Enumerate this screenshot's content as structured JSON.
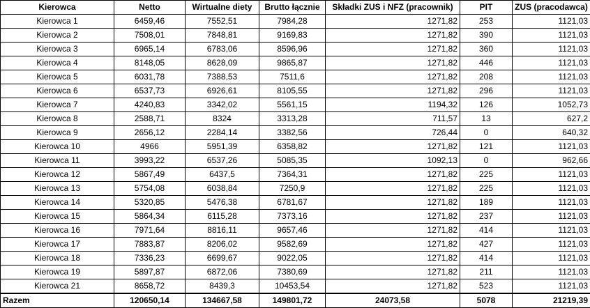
{
  "headers": [
    "Kierowca",
    "Netto",
    "Wirtualne diety",
    "Brutto łącznie",
    "Składki ZUS i NFZ (pracownik)",
    "PIT",
    "ZUS (pracodawca)"
  ],
  "rows": [
    [
      "Kierowca 1",
      "6459,46",
      "7552,51",
      "7984,28",
      "1271,82",
      "253",
      "1121,03"
    ],
    [
      "Kierowca 2",
      "7508,01",
      "7848,81",
      "9169,83",
      "1271,82",
      "390",
      "1121,03"
    ],
    [
      "Kierowca 3",
      "6965,14",
      "6783,06",
      "8596,96",
      "1271,82",
      "360",
      "1121,03"
    ],
    [
      "Kierowca 4",
      "8148,05",
      "8628,09",
      "9865,87",
      "1271,82",
      "446",
      "1121,03"
    ],
    [
      "Kierowca 5",
      "6031,78",
      "7388,53",
      "7511,6",
      "1271,82",
      "208",
      "1121,03"
    ],
    [
      "Kierowca 6",
      "6537,73",
      "6926,61",
      "8105,55",
      "1271,82",
      "296",
      "1121,03"
    ],
    [
      "Kierowca 7",
      "4240,83",
      "3342,02",
      "5561,15",
      "1194,32",
      "126",
      "1052,73"
    ],
    [
      "Kierowca 8",
      "2588,71",
      "8324",
      "3313,28",
      "711,57",
      "13",
      "627,2"
    ],
    [
      "Kierowca 9",
      "2656,12",
      "2284,14",
      "3382,56",
      "726,44",
      "0",
      "640,32"
    ],
    [
      "Kierowca 10",
      "4966",
      "5951,39",
      "6358,82",
      "1271,82",
      "121",
      "1121,03"
    ],
    [
      "Kierowca 11",
      "3993,22",
      "6537,26",
      "5085,35",
      "1092,13",
      "0",
      "962,66"
    ],
    [
      "Kierowca 12",
      "5867,49",
      "6437,5",
      "7364,31",
      "1271,82",
      "225",
      "1121,03"
    ],
    [
      "Kierowca 13",
      "5754,08",
      "6038,84",
      "7250,9",
      "1271,82",
      "225",
      "1121,03"
    ],
    [
      "Kierowca 14",
      "5320,85",
      "5476,38",
      "6781,67",
      "1271,82",
      "189",
      "1121,03"
    ],
    [
      "Kierowca 15",
      "5864,34",
      "6115,28",
      "7373,16",
      "1271,82",
      "237",
      "1121,03"
    ],
    [
      "Kierowca 16",
      "7971,64",
      "8816,11",
      "9657,46",
      "1271,82",
      "414",
      "1121,03"
    ],
    [
      "Kierowca 17",
      "7883,87",
      "8206,02",
      "9582,69",
      "1271,82",
      "427",
      "1121,03"
    ],
    [
      "Kierowca 18",
      "7336,23",
      "6699,67",
      "9022,05",
      "1271,82",
      "414",
      "1121,03"
    ],
    [
      "Kierowca 19",
      "5897,87",
      "6872,06",
      "7380,69",
      "1271,82",
      "211",
      "1121,03"
    ],
    [
      "Kierowca 21",
      "8658,72",
      "8439,3",
      "10453,54",
      "1271,82",
      "523",
      "1121,03"
    ]
  ],
  "total": [
    "Razem",
    "120650,14",
    "134667,58",
    "149801,72",
    "24073,58",
    "5078",
    "21219,39"
  ]
}
